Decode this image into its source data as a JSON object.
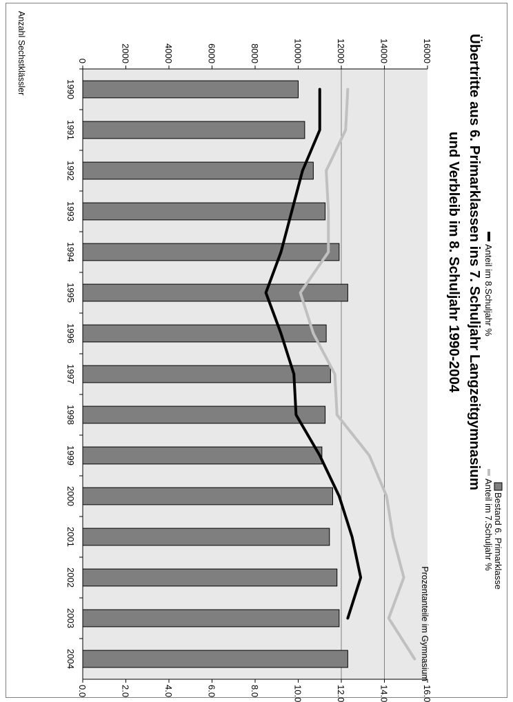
{
  "chart_data": {
    "type": "bar",
    "title_line1": "Übertritte aus 6. Primarklassen ins 7. Schuljahr Langzeitgymnasium",
    "title_line2": "und Verbleib im 8. Schuljahr 1990-2004",
    "categories": [
      "1990",
      "1991",
      "1992",
      "1993",
      "1994",
      "1995",
      "1996",
      "1997",
      "1998",
      "1999",
      "2000",
      "2001",
      "2002",
      "2003",
      "2004"
    ],
    "left_axis": {
      "label": "Anzahl Sechstklässler",
      "range": [
        0,
        16000
      ],
      "ticks": [
        "0",
        "2000",
        "4000",
        "6000",
        "8000",
        "10000",
        "12000",
        "14000",
        "16000"
      ]
    },
    "right_axis": {
      "label": "Prozentanteile im Gymnasium",
      "range": [
        0,
        16
      ],
      "ticks": [
        "0.0",
        "2.0",
        "4.0",
        "6.0",
        "8.0",
        "10.0",
        "12.0",
        "14.0",
        "16.0"
      ]
    },
    "gridlines_right": [
      12.0,
      14.0
    ],
    "series": [
      {
        "name": "Bestand 6. Primarklasse",
        "kind": "bar",
        "axis": "left",
        "color": "#7f7f7f",
        "values": [
          10000,
          10300,
          10700,
          11250,
          11900,
          12300,
          11300,
          11500,
          11250,
          11100,
          11600,
          11450,
          11800,
          11900,
          12300
        ]
      },
      {
        "name": "Anteil im 7.Schuljahr %",
        "kind": "line",
        "axis": "right",
        "color": "#c0c0c0",
        "values": [
          12.3,
          12.2,
          11.3,
          11.4,
          11.4,
          10.1,
          10.7,
          11.7,
          11.8,
          13.3,
          14.1,
          14.4,
          14.9,
          14.2,
          15.4
        ]
      },
      {
        "name": "Anteil im 8.Schuljahr %",
        "kind": "line",
        "axis": "right",
        "color": "#000000",
        "values": [
          11.0,
          11.0,
          10.2,
          null,
          9.2,
          8.5,
          9.2,
          9.8,
          9.9,
          11.0,
          11.9,
          12.5,
          12.9,
          12.3,
          null
        ]
      }
    ],
    "plot_background": "#e8e8e8",
    "legend_position": "bottom"
  }
}
